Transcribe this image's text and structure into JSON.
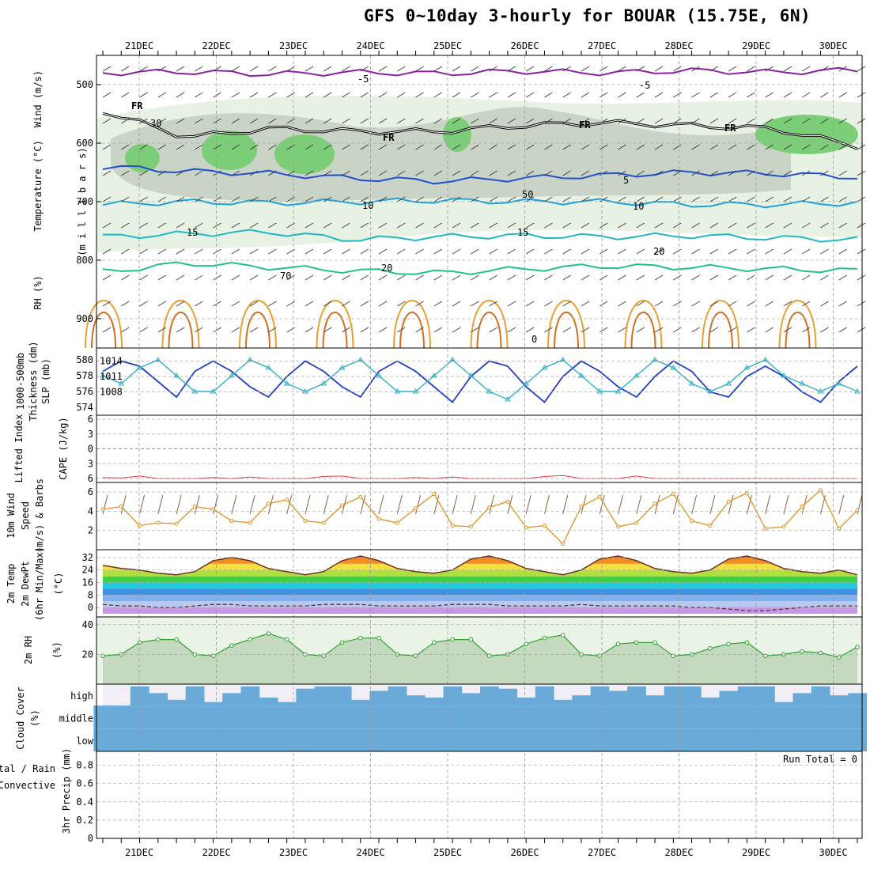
{
  "title": "GFS 0~10day 3-hourly for BOUAR (15.75E, 6N)",
  "dates": [
    "21DEC",
    "22DEC",
    "23DEC",
    "24DEC",
    "25DEC",
    "26DEC",
    "27DEC",
    "28DEC",
    "29DEC",
    "30DEC"
  ],
  "colors": {
    "temperature": "#d03030",
    "wind_purple": "#8a20a0",
    "rh_green": "#40c040",
    "slp_blue": "#2040c0",
    "thickness_cyan": "#30b0c0",
    "lifted_red": "#e04040",
    "cape_violet": "#c070d0",
    "wind10_orange": "#e09020",
    "cloud_blue": "#6aaad8",
    "precip_green": "#30a030"
  },
  "chart_data": [
    {
      "type": "contour",
      "panel": "upper-air",
      "ylabel_parts": [
        "RH (%)",
        "Temperature (°C)",
        "Wind (m/s)"
      ],
      "ylabel_right": "(m i l l i b a r s)",
      "yticks": [
        500,
        600,
        700,
        800,
        900
      ],
      "ylim": [
        450,
        950
      ],
      "isotherm_labels": [
        "-5",
        "-5",
        "5",
        "10",
        "10",
        "15",
        "15",
        "20",
        "20"
      ],
      "freezing_labels": [
        "FR",
        "FR",
        "FR",
        "FR"
      ],
      "rh_labels": [
        "30",
        "50",
        "70",
        "0"
      ],
      "isotherms": [
        {
          "label": "-5",
          "levels": [
            480,
            478,
            482,
            479,
            481,
            477,
            480,
            476,
            479,
            475
          ]
        },
        {
          "label": "FR",
          "levels": [
            545,
            590,
            575,
            580,
            580,
            570,
            565,
            570,
            575,
            605
          ]
        },
        {
          "label": "5",
          "levels": [
            640,
            648,
            652,
            660,
            665,
            660,
            655,
            650,
            652,
            658
          ]
        },
        {
          "label": "10",
          "levels": [
            705,
            700,
            702,
            700,
            698,
            700,
            700,
            705,
            705,
            702
          ]
        },
        {
          "label": "15",
          "levels": [
            760,
            755,
            752,
            765,
            760,
            758,
            760,
            758,
            762,
            765
          ]
        },
        {
          "label": "20",
          "levels": [
            820,
            805,
            812,
            818,
            822,
            815,
            810,
            812,
            815,
            818
          ]
        }
      ]
    },
    {
      "type": "line",
      "panel": "slp-thickness",
      "ylabel_left": "Thickness (dm)",
      "ylabel_left_top": "1000-500mb",
      "ylabel_right": "SLP (mb)",
      "yticks_left": [
        574,
        576,
        578,
        580
      ],
      "yticks_right": [
        1008,
        1011,
        1014
      ],
      "series": [
        {
          "name": "SLP",
          "axis": "right",
          "values": [
            1012,
            1014,
            1013,
            1010,
            1007,
            1012,
            1014,
            1012,
            1009,
            1007,
            1011,
            1014,
            1012,
            1009,
            1007,
            1012,
            1014,
            1012,
            1009,
            1006,
            1011,
            1014,
            1013,
            1009,
            1006,
            1011,
            1014,
            1012,
            1009,
            1007,
            1011,
            1014,
            1012,
            1008,
            1007,
            1011,
            1013,
            1011,
            1008,
            1006,
            1010,
            1013
          ]
        },
        {
          "name": "Thickness",
          "axis": "left",
          "values": [
            578,
            577,
            579,
            580,
            578,
            576,
            576,
            578,
            580,
            579,
            577,
            576,
            577,
            579,
            580,
            578,
            576,
            576,
            578,
            580,
            578,
            576,
            575,
            577,
            579,
            580,
            578,
            576,
            576,
            578,
            580,
            579,
            577,
            576,
            577,
            579,
            580,
            578,
            577,
            576,
            577,
            576
          ]
        }
      ]
    },
    {
      "type": "line",
      "panel": "stability",
      "ylabel_left": "Lifted Index",
      "ylabel_right": "CAPE (J/kg)",
      "yticks": [
        "6",
        "3",
        "0",
        "3",
        "6"
      ],
      "ylim": [
        -6,
        6
      ],
      "series": [
        {
          "name": "Lifted Index",
          "values": [
            5.8,
            5.9,
            5.5,
            6,
            6,
            6,
            5.8,
            6,
            5.7,
            6,
            6,
            6,
            5.6,
            5.5,
            6,
            6,
            6,
            5.8,
            6,
            5.7,
            6,
            6,
            6,
            6,
            5.6,
            5.4,
            6,
            6,
            6,
            5.5,
            6,
            6,
            6,
            6,
            6,
            6,
            6,
            6,
            6,
            6,
            6,
            6
          ]
        }
      ]
    },
    {
      "type": "line",
      "panel": "10m-wind",
      "ylabel": "10m Wind Speed (m/s) & Barbs",
      "yticks": [
        2,
        4,
        6
      ],
      "ylim": [
        0,
        7
      ],
      "series": [
        {
          "name": "10m Wind Speed",
          "values": [
            4.2,
            4.5,
            2.5,
            2.8,
            2.7,
            4.5,
            4.2,
            3.0,
            2.8,
            4.8,
            5.2,
            3.0,
            2.8,
            4.6,
            5.5,
            3.2,
            2.8,
            4.3,
            5.8,
            2.5,
            2.4,
            4.4,
            5.0,
            2.3,
            2.5,
            0.6,
            4.5,
            5.5,
            2.4,
            2.8,
            4.8,
            5.8,
            3.0,
            2.5,
            5.0,
            5.9,
            2.2,
            2.4,
            4.5,
            6.2,
            2.2,
            4.1
          ]
        }
      ]
    },
    {
      "type": "area",
      "panel": "2m-temp",
      "ylabel": "2m Temp 2m DewPt (6hr Min/Max) (°C)",
      "yticks": [
        0,
        8,
        16,
        24,
        32
      ],
      "ylim": [
        -4,
        34
      ],
      "series": [
        {
          "name": "2m Temp",
          "values": [
            27,
            25,
            24,
            22,
            21,
            23,
            30,
            32,
            30,
            25,
            23,
            21,
            23,
            30,
            33,
            30,
            25,
            23,
            22,
            24,
            31,
            33,
            30,
            25,
            23,
            21,
            24,
            31,
            33,
            30,
            25,
            23,
            22,
            24,
            31,
            33,
            30,
            25,
            23,
            22,
            24,
            21
          ]
        },
        {
          "name": "2m DewPt",
          "values": [
            2,
            1,
            1,
            0,
            0,
            1,
            2,
            2,
            1,
            1,
            1,
            1,
            2,
            2,
            2,
            1,
            1,
            1,
            1,
            2,
            2,
            2,
            1,
            1,
            1,
            1,
            2,
            1,
            1,
            1,
            1,
            1,
            0,
            0,
            -1,
            -2,
            -2,
            -1,
            0,
            1,
            1,
            1
          ]
        }
      ]
    },
    {
      "type": "area",
      "panel": "2m-rh",
      "ylabel": "2m RH (%)",
      "yticks": [
        20,
        40
      ],
      "ylim": [
        0,
        42
      ],
      "series": [
        {
          "name": "2m RH",
          "values": [
            19,
            20,
            28,
            30,
            30,
            20,
            19,
            26,
            30,
            34,
            30,
            20,
            19,
            28,
            31,
            31,
            20,
            19,
            28,
            30,
            30,
            19,
            20,
            27,
            31,
            33,
            20,
            19,
            27,
            28,
            28,
            19,
            20,
            24,
            27,
            28,
            19,
            20,
            22,
            21,
            18,
            25
          ]
        }
      ]
    },
    {
      "type": "bar",
      "panel": "cloud-cover",
      "ylabel": "Cloud Cover (%)",
      "layer_labels": [
        "high",
        "middle",
        "low"
      ],
      "series": [
        {
          "name": "high",
          "values": [
            0.05,
            0.05,
            0.9,
            0.6,
            0.3,
            0.9,
            0.2,
            0.6,
            0.9,
            0.4,
            0.2,
            0.8,
            0.9,
            0.9,
            0.3,
            0.7,
            0.9,
            0.5,
            0.4,
            0.9,
            0.6,
            0.9,
            0.8,
            0.4,
            0.9,
            0.3,
            0.5,
            0.9,
            0.7,
            0.9,
            0.5,
            0.9,
            0.9,
            0.4,
            0.7,
            0.9,
            0.9,
            0.2,
            0.6,
            0.9,
            0.5,
            0.6
          ]
        },
        {
          "name": "middle",
          "values": [
            1,
            1,
            1,
            1,
            1,
            1,
            1,
            1,
            1,
            1,
            1,
            1,
            1,
            1,
            1,
            1,
            1,
            1,
            1,
            1,
            1,
            1,
            1,
            1,
            1,
            1,
            1,
            1,
            1,
            1,
            1,
            1,
            1,
            1,
            1,
            1,
            1,
            1,
            1,
            1,
            1,
            1
          ]
        },
        {
          "name": "low",
          "values": [
            1,
            1,
            1,
            1,
            1,
            1,
            1,
            1,
            1,
            1,
            1,
            1,
            1,
            1,
            1,
            1,
            1,
            1,
            1,
            1,
            1,
            1,
            1,
            1,
            1,
            1,
            1,
            1,
            1,
            1,
            1,
            1,
            1,
            1,
            1,
            1,
            1,
            1,
            1,
            1,
            1,
            1
          ]
        }
      ]
    },
    {
      "type": "bar",
      "panel": "precip",
      "ylabel_left": "Total / Rain",
      "ylabel_left2": "Convective",
      "ylabel_right": "3hr Precip (mm)",
      "yticks": [
        "0",
        "0.2",
        "0.4",
        "0.6",
        "0.8"
      ],
      "ylim": [
        0,
        0.9
      ],
      "run_total": "Run Total = 0",
      "series": [
        {
          "name": "Total / Rain",
          "values": [
            0,
            0,
            0,
            0,
            0,
            0,
            0,
            0,
            0,
            0,
            0,
            0,
            0,
            0,
            0,
            0,
            0,
            0,
            0,
            0,
            0,
            0,
            0,
            0,
            0,
            0,
            0,
            0,
            0,
            0,
            0,
            0,
            0,
            0,
            0,
            0,
            0,
            0,
            0,
            0,
            0,
            0
          ]
        }
      ]
    }
  ]
}
